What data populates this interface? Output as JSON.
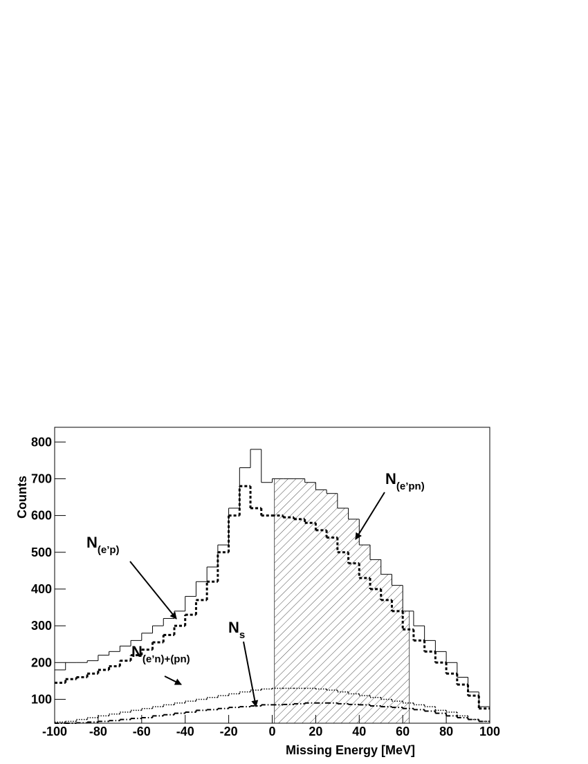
{
  "chart_data": {
    "type": "histogram",
    "x_label": "Missing Energy [MeV]",
    "y_label": "Counts",
    "bins": [
      -100,
      -95,
      -90,
      -85,
      -80,
      -75,
      -70,
      -65,
      -60,
      -55,
      -50,
      -45,
      -40,
      -35,
      -30,
      -25,
      -20,
      -15,
      -10,
      -5,
      0,
      5,
      10,
      15,
      20,
      25,
      30,
      35,
      40,
      45,
      50,
      55,
      60,
      65,
      70,
      75,
      80,
      85,
      90,
      95,
      100
    ],
    "series": [
      {
        "style": "solid",
        "color": "#000000",
        "values": [
          180,
          200,
          200,
          205,
          220,
          230,
          245,
          260,
          280,
          300,
          320,
          340,
          380,
          420,
          460,
          520,
          620,
          730,
          780,
          690,
          700,
          700,
          700,
          690,
          670,
          660,
          620,
          590,
          520,
          480,
          440,
          410,
          340,
          300,
          260,
          230,
          200,
          160,
          120,
          80
        ]
      },
      {
        "style": "dashed",
        "color": "#000000",
        "values": [
          145,
          155,
          160,
          170,
          180,
          190,
          205,
          220,
          235,
          255,
          275,
          300,
          330,
          370,
          420,
          500,
          600,
          680,
          620,
          600,
          600,
          595,
          590,
          580,
          560,
          540,
          500,
          470,
          430,
          400,
          370,
          340,
          290,
          260,
          230,
          200,
          170,
          140,
          110,
          75
        ]
      },
      {
        "style": "dotted",
        "color": "#000000",
        "values": [
          38,
          40,
          45,
          50,
          55,
          60,
          65,
          70,
          75,
          80,
          85,
          90,
          95,
          100,
          105,
          110,
          115,
          120,
          125,
          128,
          130,
          130,
          130,
          130,
          128,
          125,
          120,
          115,
          110,
          105,
          100,
          95,
          90,
          85,
          80,
          70,
          65,
          55,
          45,
          40
        ]
      },
      {
        "style": "dashdot",
        "color": "#000000",
        "values": [
          35,
          35,
          36,
          38,
          40,
          42,
          45,
          48,
          50,
          55,
          58,
          62,
          65,
          70,
          72,
          75,
          78,
          80,
          82,
          85,
          85,
          86,
          88,
          90,
          90,
          90,
          88,
          86,
          85,
          82,
          80,
          78,
          75,
          72,
          68,
          62,
          55,
          50,
          45,
          40
        ]
      }
    ],
    "shade_range": [
      1,
      63
    ],
    "annotations": [
      {
        "text": "N",
        "sub": "(e’pn)"
      },
      {
        "text": "N",
        "sub": "(e’p)"
      },
      {
        "text": "N",
        "sub": "s"
      },
      {
        "text": "N",
        "sub": "(e’n)+(pn)"
      }
    ],
    "xlim": [
      -100,
      100
    ],
    "ylim": [
      35,
      840
    ],
    "xticks": [
      -100,
      -80,
      -60,
      -40,
      -20,
      0,
      20,
      40,
      60,
      80,
      100
    ],
    "yticks": [
      100,
      200,
      300,
      400,
      500,
      600,
      700,
      800
    ]
  }
}
